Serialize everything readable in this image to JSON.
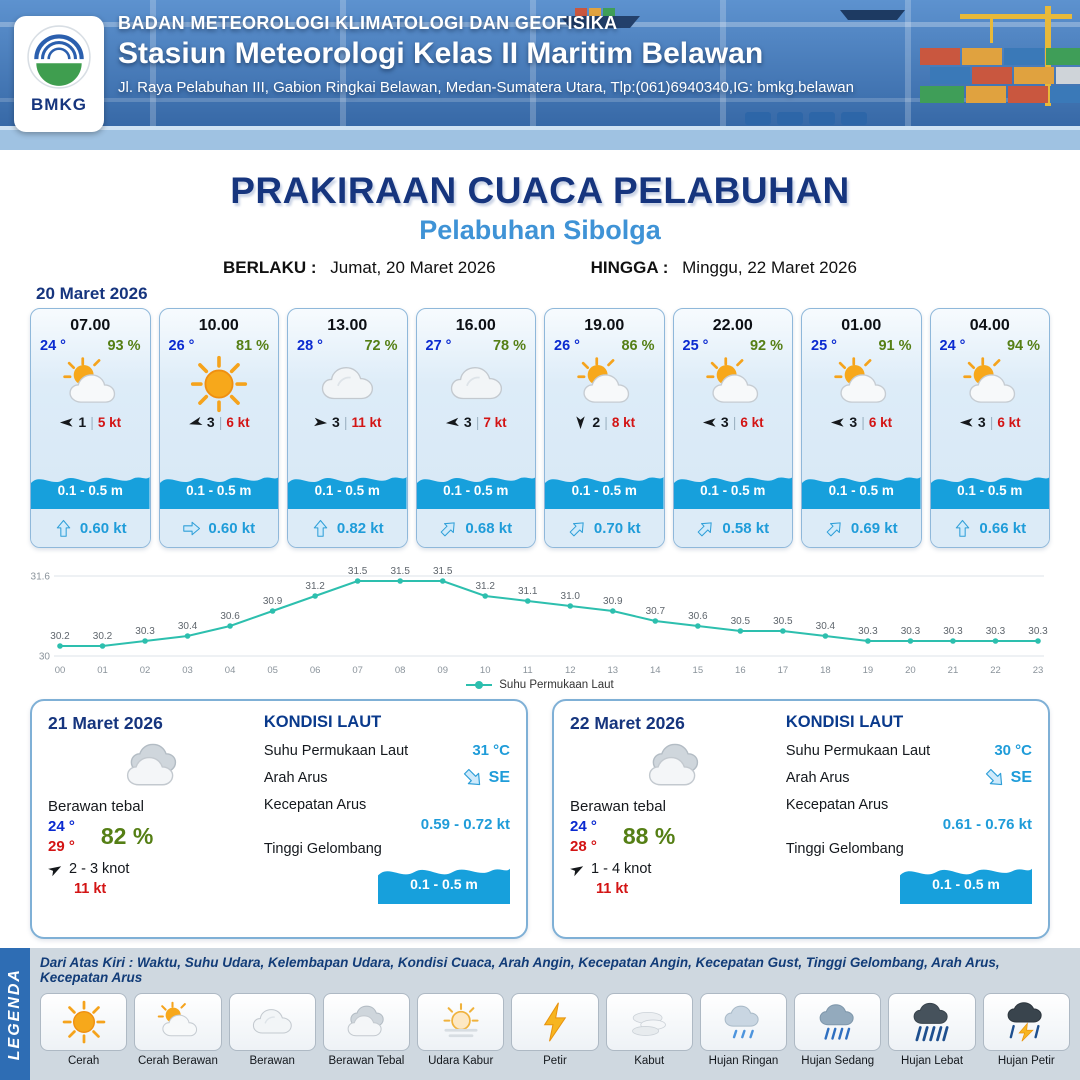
{
  "header": {
    "logo_text": "BMKG",
    "org": "BADAN METEOROLOGI KLIMATOLOGI DAN GEOFISIKA",
    "station": "Stasiun Meteorologi Kelas II Maritim Belawan",
    "address": "Jl. Raya Pelabuhan III, Gabion Ringkai Belawan, Medan-Sumatera Utara, Tlp:(061)6940340,IG: bmkg.belawan"
  },
  "title": {
    "main": "PRAKIRAAN CUACA PELABUHAN",
    "port": "Pelabuhan Sibolga",
    "valid_label": "BERLAKU :",
    "valid_value": "Jumat, 20 Maret 2026",
    "until_label": "HINGGA :",
    "until_value": "Minggu, 22 Maret 2026"
  },
  "forecast_date": "20 Maret 2026",
  "cards": [
    {
      "time": "07.00",
      "temp": "24 °",
      "humidity": "93 %",
      "icon": "partly-cloudy",
      "wind_icon": "wind-arrow",
      "wind_rot": 270,
      "wind_val": "1",
      "wind_speed": "5 kt",
      "wave": "0.1 - 0.5 m",
      "current_icon": "current-arrow",
      "current_rot": 0,
      "current": "0.60 kt"
    },
    {
      "time": "10.00",
      "temp": "26 °",
      "humidity": "81 %",
      "icon": "sun",
      "wind_icon": "wind-arrow",
      "wind_rot": 255,
      "wind_val": "3",
      "wind_speed": "6 kt",
      "wave": "0.1 - 0.5 m",
      "current_icon": "current-arrow",
      "current_rot": 90,
      "current": "0.60 kt"
    },
    {
      "time": "13.00",
      "temp": "28 °",
      "humidity": "72 %",
      "icon": "cloudy",
      "wind_icon": "wind-arrow",
      "wind_rot": 95,
      "wind_val": "3",
      "wind_speed": "11 kt",
      "wave": "0.1 - 0.5 m",
      "current_icon": "current-arrow",
      "current_rot": 0,
      "current": "0.82 kt"
    },
    {
      "time": "16.00",
      "temp": "27 °",
      "humidity": "78 %",
      "icon": "cloudy",
      "wind_icon": "wind-arrow",
      "wind_rot": 265,
      "wind_val": "3",
      "wind_speed": "7 kt",
      "wave": "0.1 - 0.5 m",
      "current_icon": "current-arrow",
      "current_rot": 45,
      "current": "0.68 kt"
    },
    {
      "time": "19.00",
      "temp": "26 °",
      "humidity": "86 %",
      "icon": "partly-cloudy",
      "wind_icon": "wind-arrow",
      "wind_rot": 180,
      "wind_val": "2",
      "wind_speed": "8 kt",
      "wave": "0.1 - 0.5 m",
      "current_icon": "current-arrow",
      "current_rot": 45,
      "current": "0.70 kt"
    },
    {
      "time": "22.00",
      "temp": "25 °",
      "humidity": "92 %",
      "icon": "partly-cloudy",
      "wind_icon": "wind-arrow",
      "wind_rot": 270,
      "wind_val": "3",
      "wind_speed": "6 kt",
      "wave": "0.1 - 0.5 m",
      "current_icon": "current-arrow",
      "current_rot": 45,
      "current": "0.58 kt"
    },
    {
      "time": "01.00",
      "temp": "25 °",
      "humidity": "91 %",
      "icon": "partly-cloudy",
      "wind_icon": "wind-arrow",
      "wind_rot": 270,
      "wind_val": "3",
      "wind_speed": "6 kt",
      "wave": "0.1 - 0.5 m",
      "current_icon": "current-arrow",
      "current_rot": 45,
      "current": "0.69 kt"
    },
    {
      "time": "04.00",
      "temp": "24 °",
      "humidity": "94 %",
      "icon": "partly-cloudy",
      "wind_icon": "wind-arrow",
      "wind_rot": 270,
      "wind_val": "3",
      "wind_speed": "6 kt",
      "wave": "0.1 - 0.5 m",
      "current_icon": "current-arrow",
      "current_rot": 0,
      "current": "0.66 kt"
    }
  ],
  "chart_data": {
    "type": "line",
    "title": "Suhu Permukaan Laut",
    "x": [
      "00",
      "01",
      "02",
      "03",
      "04",
      "05",
      "06",
      "07",
      "08",
      "09",
      "10",
      "11",
      "12",
      "13",
      "14",
      "15",
      "16",
      "17",
      "18",
      "19",
      "20",
      "21",
      "22",
      "23"
    ],
    "values": [
      30.2,
      30.2,
      30.3,
      30.4,
      30.6,
      30.9,
      31.2,
      31.5,
      31.5,
      31.5,
      31.2,
      31.1,
      31.0,
      30.9,
      30.7,
      30.6,
      30.5,
      30.5,
      30.4,
      30.3,
      30.3,
      30.3,
      30.3,
      30.3
    ],
    "xlabel": "",
    "ylabel": "",
    "ylim": [
      30,
      31.6
    ],
    "yticks": [
      30,
      31.6
    ],
    "grid": false,
    "legend": [
      "Suhu Permukaan Laut"
    ],
    "legend_position": "bottom",
    "line_color": "#2dbfae"
  },
  "days": [
    {
      "date": "21 Maret 2026",
      "icon": "thick-cloud",
      "condition": "Berawan tebal",
      "temp_min": "24 °",
      "temp_max": "29 °",
      "humidity": "82 %",
      "wind_icon": "wind-arrow",
      "wind_rot": 60,
      "wind": "2 - 3 knot",
      "gust": "11 kt",
      "sea": {
        "title": "KONDISI LAUT",
        "sst_label": "Suhu Permukaan Laut",
        "sst": "31 °C",
        "current_dir_label": "Arah Arus",
        "current_icon": "current-arrow",
        "current_dir_rot": 135,
        "current_dir": "SE",
        "current_speed_label": "Kecepatan Arus",
        "current_speed": "0.59 - 0.72 kt",
        "wave_label": "Tinggi Gelombang",
        "wave": "0.1 - 0.5 m"
      }
    },
    {
      "date": "22 Maret 2026",
      "icon": "thick-cloud",
      "condition": "Berawan tebal",
      "temp_min": "24 °",
      "temp_max": "28 °",
      "humidity": "88 %",
      "wind_icon": "wind-arrow",
      "wind_rot": 60,
      "wind": "1 - 4 knot",
      "gust": "11 kt",
      "sea": {
        "title": "KONDISI LAUT",
        "sst_label": "Suhu Permukaan Laut",
        "sst": "30 °C",
        "current_dir_label": "Arah Arus",
        "current_icon": "current-arrow",
        "current_dir_rot": 135,
        "current_dir": "SE",
        "current_speed_label": "Kecepatan Arus",
        "current_speed": "0.61 - 0.76 kt",
        "wave_label": "Tinggi Gelombang",
        "wave": "0.1 - 0.5 m"
      }
    }
  ],
  "legend": {
    "title": "LEGENDA",
    "description": "Dari Atas Kiri : Waktu, Suhu Udara, Kelembapan Udara, Kondisi Cuaca, Arah Angin, Kecepatan Angin, Kecepatan Gust, Tinggi Gelombang, Arah Arus, Kecepatan Arus",
    "items": [
      {
        "label": "Cerah",
        "icon": "sun"
      },
      {
        "label": "Cerah Berawan",
        "icon": "partly-cloudy"
      },
      {
        "label": "Berawan",
        "icon": "cloudy"
      },
      {
        "label": "Berawan Tebal",
        "icon": "thick-cloud"
      },
      {
        "label": "Udara Kabur",
        "icon": "hazy-sun"
      },
      {
        "label": "Petir",
        "icon": "lightning"
      },
      {
        "label": "Kabut",
        "icon": "fog"
      },
      {
        "label": "Hujan Ringan",
        "icon": "light-rain"
      },
      {
        "label": "Hujan Sedang",
        "icon": "moderate-rain"
      },
      {
        "label": "Hujan Lebat",
        "icon": "heavy-rain"
      },
      {
        "label": "Hujan Petir",
        "icon": "thunderstorm"
      }
    ]
  },
  "colors": {
    "accent_navy": "#16357e",
    "accent_blue": "#3f93d6",
    "temp_blue": "#0a2ad0",
    "humidity_green": "#557f15",
    "speed_red": "#d31414",
    "sea_blue": "#1f9cd9",
    "wave_fill": "#17a0dc",
    "chart_line": "#2dbfae",
    "legend_sidebar": "#2e6db4"
  }
}
